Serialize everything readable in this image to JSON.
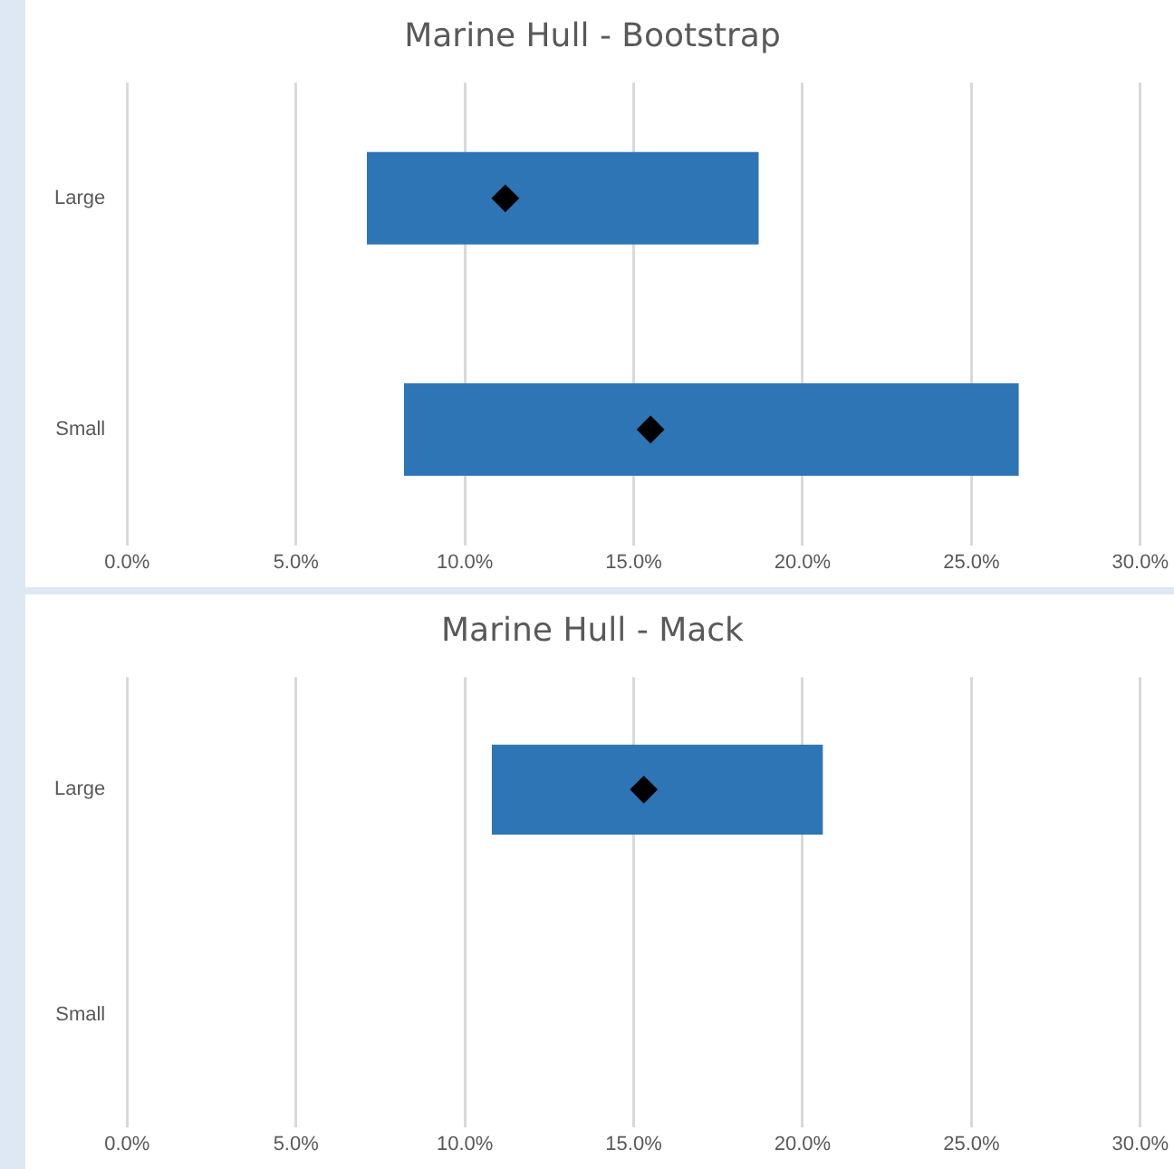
{
  "chart_data": [
    {
      "type": "bar",
      "orientation": "horizontal",
      "title": "Marine Hull - Bootstrap",
      "categories": [
        "Large",
        "Small"
      ],
      "xlim": [
        0,
        30
      ],
      "xticks": [
        {
          "value": 0,
          "label": "0.0%"
        },
        {
          "value": 5,
          "label": "5.0%"
        },
        {
          "value": 10,
          "label": "10.0%"
        },
        {
          "value": 15,
          "label": "15.0%"
        },
        {
          "value": 20,
          "label": "20.0%"
        },
        {
          "value": 25,
          "label": "25.0%"
        },
        {
          "value": 30,
          "label": "30.0%"
        }
      ],
      "grid": "x",
      "series": [
        {
          "type": "bar",
          "color": "#2e75b6",
          "base": [
            7.1,
            8.2
          ],
          "values": [
            11.6,
            18.2
          ]
        },
        {
          "type": "scatter",
          "color": "#000000",
          "marker": "diamond",
          "x": [
            "Large",
            "Small"
          ],
          "values": [
            11.2,
            15.5
          ]
        }
      ]
    },
    {
      "type": "bar",
      "orientation": "horizontal",
      "title": "Marine Hull - Mack",
      "categories": [
        "Large",
        "Small"
      ],
      "xlim": [
        0,
        30
      ],
      "xticks": [
        {
          "value": 0,
          "label": "0.0%"
        },
        {
          "value": 5,
          "label": "5.0%"
        },
        {
          "value": 10,
          "label": "10.0%"
        },
        {
          "value": 15,
          "label": "15.0%"
        },
        {
          "value": 20,
          "label": "20.0%"
        },
        {
          "value": 25,
          "label": "25.0%"
        },
        {
          "value": 30,
          "label": "30.0%"
        }
      ],
      "grid": "x",
      "series": [
        {
          "type": "bar",
          "color": "#2e75b6",
          "base": [
            10.8,
            null
          ],
          "values": [
            9.8,
            null
          ]
        },
        {
          "type": "scatter",
          "color": "#000000",
          "marker": "diamond",
          "x": [
            "Large",
            "Small"
          ],
          "values": [
            15.3,
            null
          ]
        }
      ]
    }
  ]
}
